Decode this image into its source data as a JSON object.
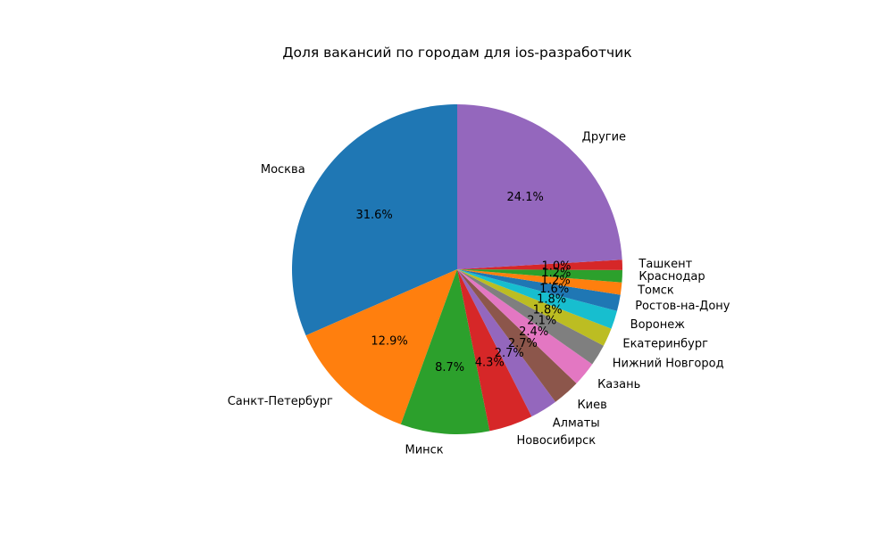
{
  "chart_data": {
    "type": "pie",
    "title": "Доля вакансий по городам для ios-разработчик",
    "start_angle_deg": 90,
    "direction": "counterclockwise",
    "slices": [
      {
        "label": "Москва",
        "value": 31.6,
        "pct_label": "31.6%",
        "color": "#1f77b4"
      },
      {
        "label": "Санкт-Петербург",
        "value": 12.9,
        "pct_label": "12.9%",
        "color": "#ff7f0e"
      },
      {
        "label": "Минск",
        "value": 8.7,
        "pct_label": "8.7%",
        "color": "#2ca02c"
      },
      {
        "label": "Новосибирск",
        "value": 4.3,
        "pct_label": "4.3%",
        "color": "#d62728"
      },
      {
        "label": "Алматы",
        "value": 2.7,
        "pct_label": "2.7%",
        "color": "#9467bd"
      },
      {
        "label": "Киев",
        "value": 2.7,
        "pct_label": "2.7%",
        "color": "#8c564b"
      },
      {
        "label": "Казань",
        "value": 2.4,
        "pct_label": "2.4%",
        "color": "#e377c2"
      },
      {
        "label": "Нижний Новгород",
        "value": 2.1,
        "pct_label": "2.1%",
        "color": "#7f7f7f"
      },
      {
        "label": "Екатеринбург",
        "value": 1.8,
        "pct_label": "1.8%",
        "color": "#bcbd22"
      },
      {
        "label": "Воронеж",
        "value": 1.8,
        "pct_label": "1.8%",
        "color": "#17becf"
      },
      {
        "label": "Ростов-на-Дону",
        "value": 1.6,
        "pct_label": "1.6%",
        "color": "#1f77b4"
      },
      {
        "label": "Томск",
        "value": 1.2,
        "pct_label": "1.2%",
        "color": "#ff7f0e"
      },
      {
        "label": "Краснодар",
        "value": 1.2,
        "pct_label": "1.2%",
        "color": "#2ca02c"
      },
      {
        "label": "Ташкент",
        "value": 1.0,
        "pct_label": "1.0%",
        "color": "#d62728"
      },
      {
        "label": "Другие",
        "value": 24.1,
        "pct_label": "24.1%",
        "color": "#9467bd"
      }
    ]
  }
}
